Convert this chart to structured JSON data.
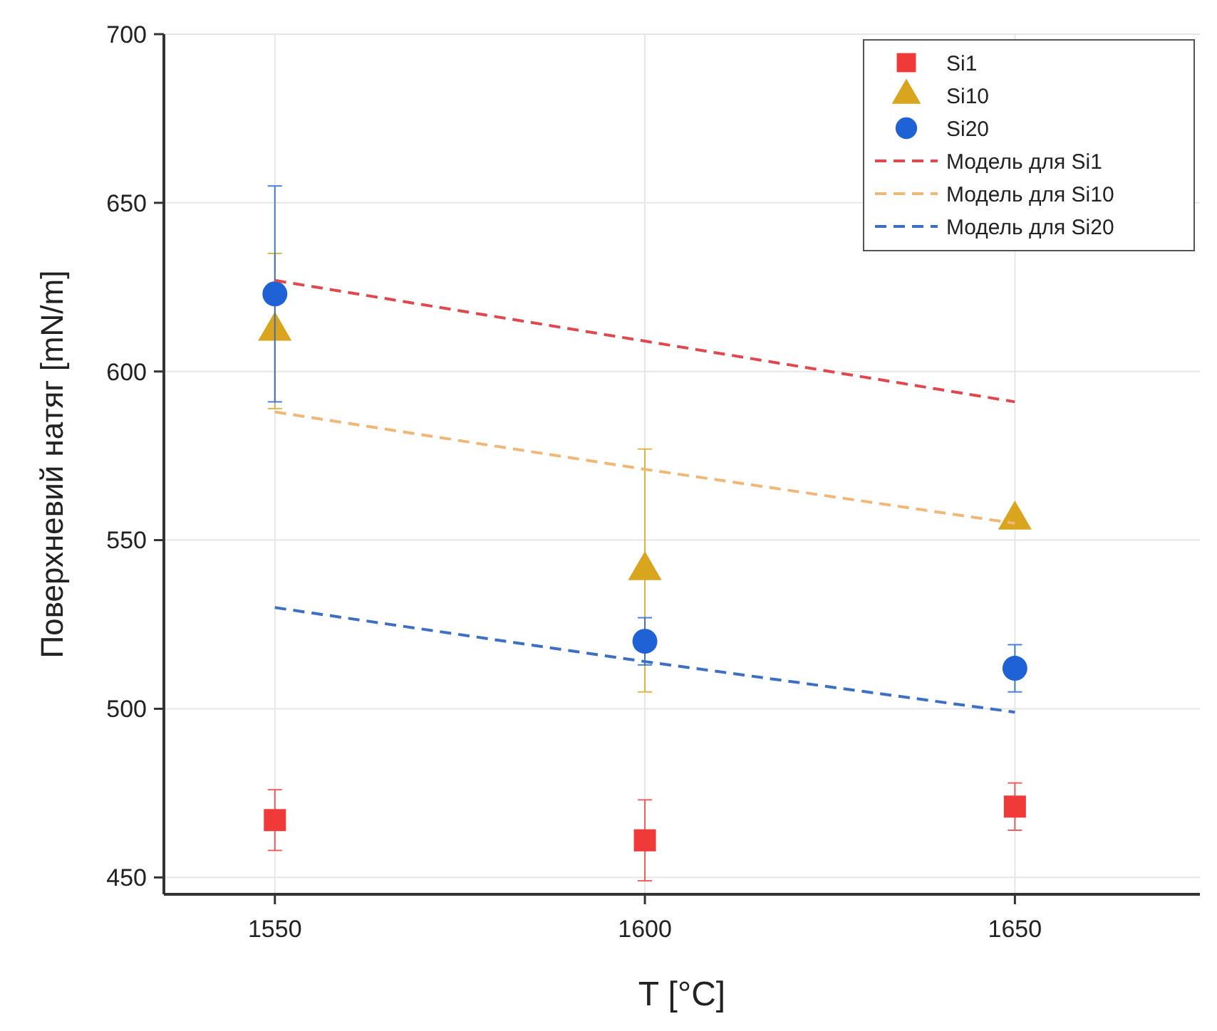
{
  "chart_data": {
    "type": "scatter",
    "xlabel": "T [°C]",
    "ylabel": "Поверхневий натяг [mN/m]",
    "x": [
      1550,
      1600,
      1650
    ],
    "xlim": [
      1535,
      1675
    ],
    "ylim": [
      445,
      700
    ],
    "xticks": [
      1550,
      1600,
      1650
    ],
    "yticks": [
      450,
      500,
      550,
      600,
      650,
      700
    ],
    "grid": true,
    "legend": "top right",
    "series": [
      {
        "name": "Si1",
        "marker": "square",
        "color": "#f03a3a",
        "values": [
          467,
          461,
          471
        ],
        "errors": [
          9,
          12,
          7
        ]
      },
      {
        "name": "Si10",
        "marker": "triangle",
        "color": "#d9a51e",
        "values": [
          612,
          541,
          556
        ],
        "errors": [
          23,
          36,
          null
        ]
      },
      {
        "name": "Si20",
        "marker": "circle",
        "color": "#1f62d6",
        "values": [
          623,
          520,
          512
        ],
        "errors": [
          32,
          7,
          7
        ]
      },
      {
        "name": "Модель для Si1",
        "type": "line",
        "line_style": "dashed",
        "marker": "none",
        "color": "#e0484f",
        "values": [
          627,
          609,
          591
        ]
      },
      {
        "name": "Модель для Si10",
        "type": "line",
        "line_style": "dashed",
        "marker": "none",
        "color": "#f0b878",
        "values": [
          588,
          571,
          555
        ]
      },
      {
        "name": "Модель для Si20",
        "type": "line",
        "line_style": "dashed",
        "marker": "none",
        "color": "#3d6fc2",
        "values": [
          530,
          514,
          499
        ]
      }
    ]
  }
}
